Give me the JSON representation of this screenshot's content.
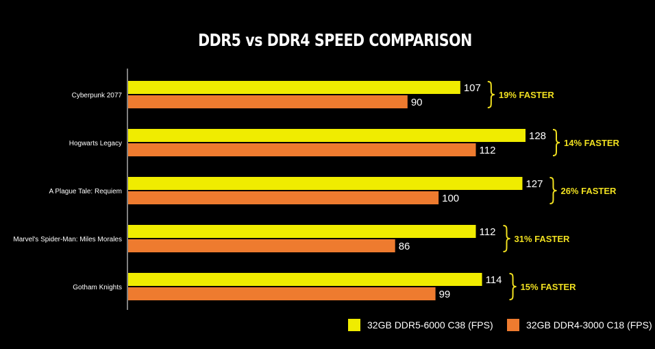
{
  "chart_data": {
    "type": "bar",
    "orientation": "horizontal",
    "title": "DDR5 vs DDR4 SPEED COMPARISON",
    "categories": [
      "Cyberpunk 2077",
      "Hogwarts Legacy",
      "A Plague Tale: Requiem",
      "Marvel's Spider-Man: Miles Morales",
      "Gotham Knights"
    ],
    "series": [
      {
        "name": "32GB DDR5-6000 C38 (FPS)",
        "color": "#f0ec00",
        "values": [
          107,
          128,
          127,
          112,
          114
        ]
      },
      {
        "name": "32GB DDR4-3000 C18 (FPS)",
        "color": "#ee7b2f",
        "values": [
          90,
          112,
          100,
          86,
          99
        ]
      }
    ],
    "annotations": [
      "19% FASTER",
      "14% FASTER",
      "26% FASTER",
      "31% FASTER",
      "15% FASTER"
    ],
    "annotation_color": "#f0e020",
    "xlim": [
      0,
      128
    ],
    "grid": false,
    "legend_position": "bottom-right",
    "background": "#000000"
  }
}
